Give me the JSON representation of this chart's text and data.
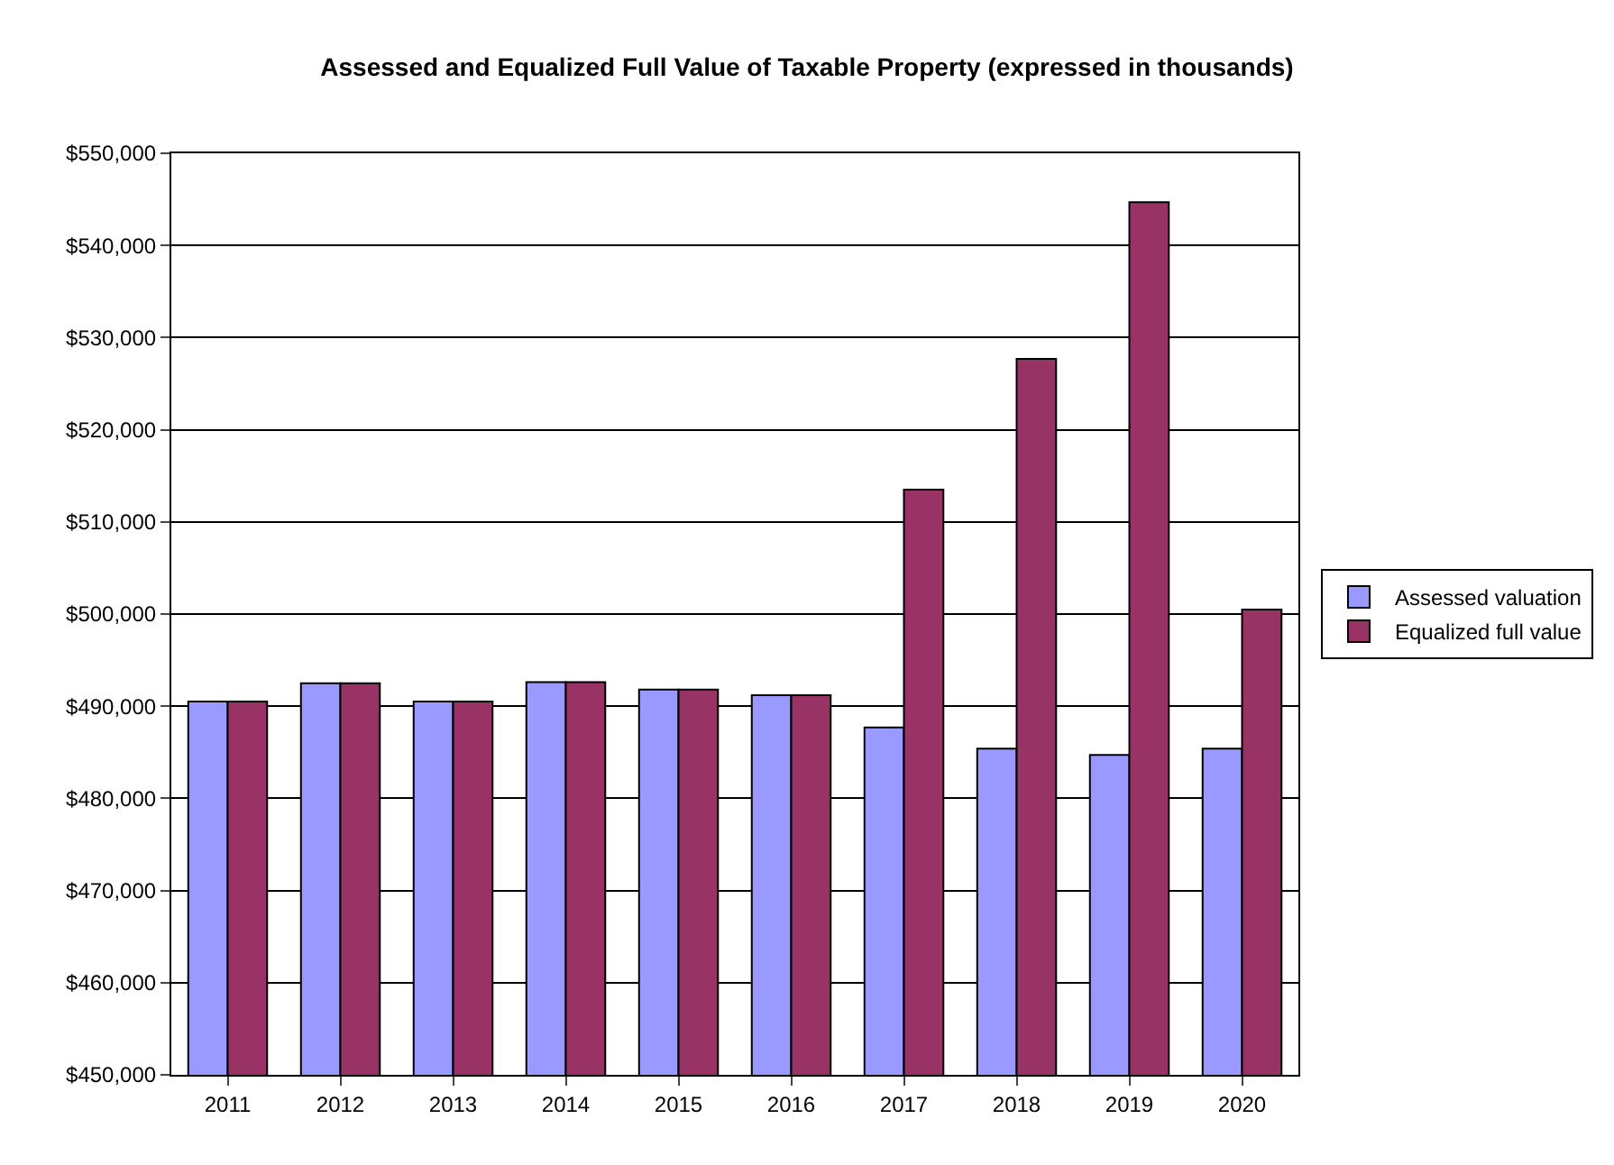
{
  "chart_data": {
    "type": "bar",
    "title": "Assessed and Equalized Full Value of Taxable Property (expressed in thousands)",
    "categories": [
      "2011",
      "2012",
      "2013",
      "2014",
      "2015",
      "2016",
      "2017",
      "2018",
      "2019",
      "2020"
    ],
    "series": [
      {
        "name": "Assessed valuation",
        "color": "#9999ff",
        "values": [
          490500,
          492500,
          490500,
          492600,
          491800,
          491200,
          487700,
          485400,
          484700,
          485400
        ]
      },
      {
        "name": "Equalized full value",
        "color": "#993366",
        "values": [
          490500,
          492500,
          490500,
          492600,
          491800,
          491200,
          513500,
          527700,
          544700,
          500500
        ]
      }
    ],
    "ylim": [
      450000,
      550000
    ],
    "yticks": [
      {
        "value": 450000,
        "label": "$450,000"
      },
      {
        "value": 460000,
        "label": "$460,000"
      },
      {
        "value": 470000,
        "label": "$470,000"
      },
      {
        "value": 480000,
        "label": "$480,000"
      },
      {
        "value": 490000,
        "label": "$490,000"
      },
      {
        "value": 500000,
        "label": "$500,000"
      },
      {
        "value": 510000,
        "label": "$510,000"
      },
      {
        "value": 520000,
        "label": "$520,000"
      },
      {
        "value": 530000,
        "label": "$530,000"
      },
      {
        "value": 540000,
        "label": "$540,000"
      },
      {
        "value": 550000,
        "label": "$550,000"
      }
    ],
    "grid": "y",
    "legend": "right"
  }
}
